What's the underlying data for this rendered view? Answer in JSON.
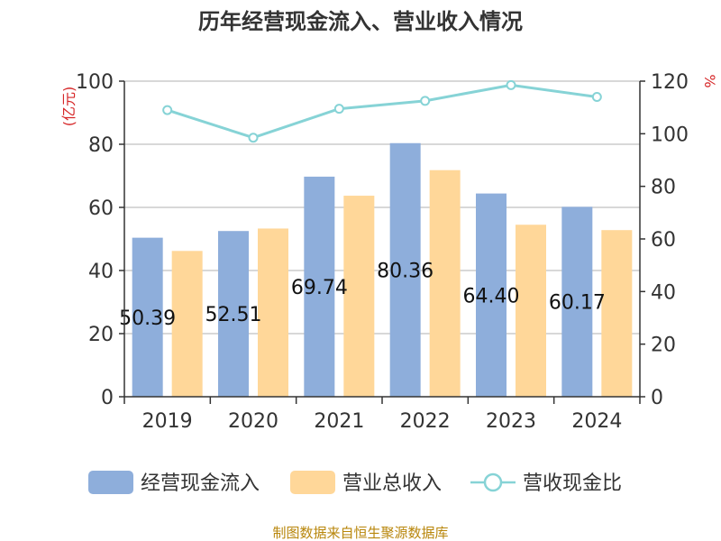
{
  "chart_data": {
    "type": "bar",
    "title": "历年经营现金流入、营业收入情况",
    "categories": [
      "2019",
      "2020",
      "2021",
      "2022",
      "2023",
      "2024"
    ],
    "series": [
      {
        "name": "经营现金流入",
        "kind": "bar",
        "axis": "left",
        "color": "#8eaedb",
        "values": [
          50.39,
          52.51,
          69.74,
          80.36,
          64.4,
          60.17
        ]
      },
      {
        "name": "营业总收入",
        "kind": "bar",
        "axis": "left",
        "color": "#ffd799",
        "values": [
          46.2,
          53.3,
          63.7,
          71.8,
          54.5,
          52.8
        ]
      },
      {
        "name": "营收现金比",
        "kind": "line",
        "axis": "right",
        "color": "#86d3d6",
        "values": [
          109,
          98.5,
          109.5,
          112.5,
          118.5,
          114
        ]
      }
    ],
    "bar_labels": [
      "50.39",
      "52.51",
      "69.74",
      "80.36",
      "64.40",
      "60.17"
    ],
    "left_axis": {
      "unit": "(亿元)",
      "ylim": [
        0,
        100
      ],
      "ticks": [
        0,
        20,
        40,
        60,
        80,
        100
      ]
    },
    "right_axis": {
      "unit": "%",
      "ylim": [
        0,
        120
      ],
      "ticks": [
        0,
        20,
        40,
        60,
        80,
        100,
        120
      ]
    },
    "grid": true,
    "legend_position": "bottom",
    "source_note": "制图数据来自恒生聚源数据库"
  }
}
